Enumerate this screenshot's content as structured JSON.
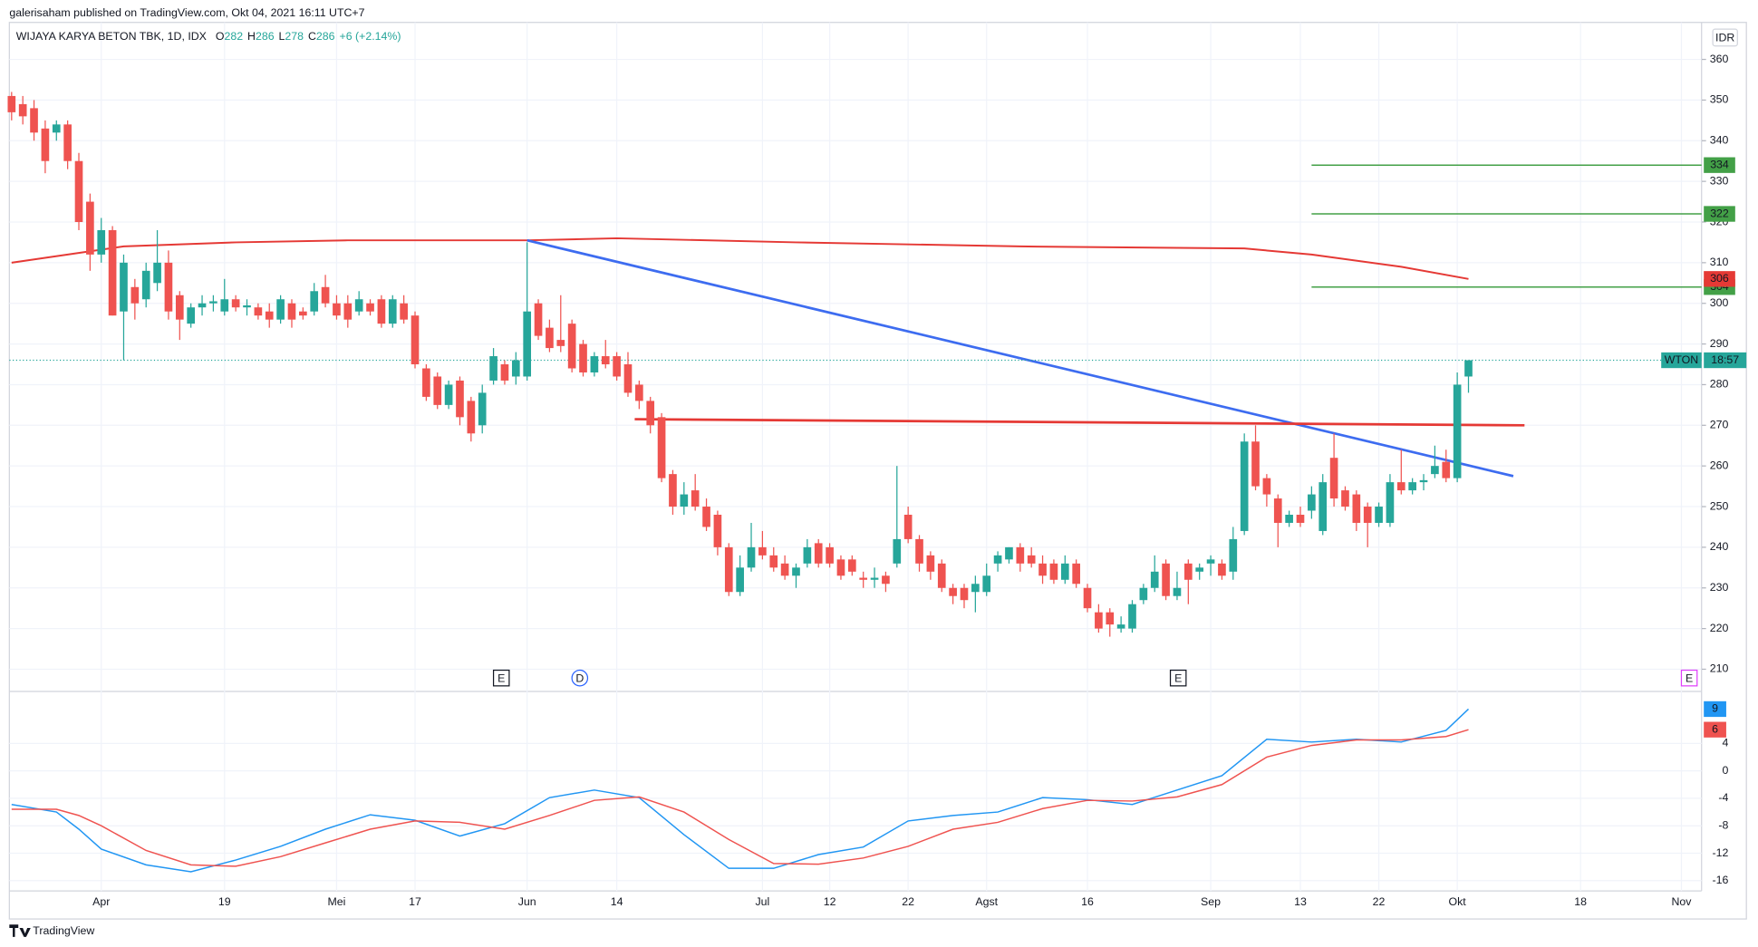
{
  "chart_data": {
    "type": "candlestick",
    "published": "galerisaham published on TradingView.com, Okt 04, 2021 16:11 UTC+7",
    "symbol_line": "WIJAYA KARYA BETON TBK, 1D, IDX",
    "legend": [
      {
        "label": "O",
        "value": 282
      },
      {
        "label": "H",
        "value": 286
      },
      {
        "label": "L",
        "value": 278
      },
      {
        "label": "C",
        "value": 286
      }
    ],
    "change": "+6 (+2.14%)",
    "currency": "IDR",
    "brand": "TradingView",
    "up_color": "#26a69a",
    "down_color": "#ef5350",
    "candles": [
      [
        351,
        352,
        345,
        347
      ],
      [
        349,
        351,
        344,
        346
      ],
      [
        348,
        350,
        340,
        342
      ],
      [
        343,
        345,
        332,
        335
      ],
      [
        342,
        345,
        340,
        344
      ],
      [
        344,
        345,
        333,
        335
      ],
      [
        335,
        337,
        318,
        320
      ],
      [
        325,
        327,
        308,
        312
      ],
      [
        312,
        321,
        310,
        318
      ],
      [
        318,
        319,
        297,
        297
      ],
      [
        298,
        312,
        286,
        310
      ],
      [
        304,
        306,
        296,
        300
      ],
      [
        301,
        310,
        299,
        308
      ],
      [
        305,
        318,
        303,
        310
      ],
      [
        310,
        313,
        296,
        298
      ],
      [
        302,
        303,
        291,
        296
      ],
      [
        295,
        300,
        294,
        299
      ],
      [
        299,
        302,
        297,
        300
      ],
      [
        300,
        302,
        298,
        300.5
      ],
      [
        298,
        306,
        297,
        301
      ],
      [
        301,
        302,
        298,
        299
      ],
      [
        299,
        301,
        297,
        299.5
      ],
      [
        299,
        300,
        296,
        297
      ],
      [
        298,
        300,
        294,
        296
      ],
      [
        296,
        302,
        295,
        301
      ],
      [
        300,
        301,
        294,
        296
      ],
      [
        298,
        299,
        296,
        297
      ],
      [
        298,
        305,
        297,
        303
      ],
      [
        304,
        307,
        299,
        300
      ],
      [
        300,
        302,
        296,
        297
      ],
      [
        300,
        302,
        294,
        296
      ],
      [
        298,
        303,
        297,
        301
      ],
      [
        300,
        301,
        297,
        298
      ],
      [
        301,
        302,
        294,
        295
      ],
      [
        295,
        302,
        294,
        301
      ],
      [
        300,
        302,
        295,
        296
      ],
      [
        297,
        298,
        284,
        285
      ],
      [
        284,
        285,
        276,
        277
      ],
      [
        282,
        283,
        274,
        275
      ],
      [
        275,
        281,
        274,
        280
      ],
      [
        281,
        282,
        270,
        272
      ],
      [
        276,
        277,
        266,
        268
      ],
      [
        270,
        280,
        268,
        278
      ],
      [
        281,
        289,
        280,
        287
      ],
      [
        285,
        286,
        280,
        281
      ],
      [
        282,
        288,
        280,
        286
      ],
      [
        282,
        315,
        281,
        298
      ],
      [
        300,
        301,
        291,
        292
      ],
      [
        294,
        296,
        288,
        289
      ],
      [
        291,
        302,
        288,
        289.5
      ],
      [
        295,
        296,
        283,
        284
      ],
      [
        290,
        291,
        282,
        283
      ],
      [
        283,
        288,
        282,
        287
      ],
      [
        287,
        291,
        284,
        285
      ],
      [
        287,
        288,
        281,
        282
      ],
      [
        285,
        288,
        277,
        278
      ],
      [
        280,
        281,
        274,
        276
      ],
      [
        276,
        277,
        268,
        270
      ],
      [
        272,
        273,
        256,
        257
      ],
      [
        258,
        259,
        248,
        250
      ],
      [
        250,
        256,
        248,
        253
      ],
      [
        254,
        258,
        249,
        250
      ],
      [
        250,
        252,
        244,
        245
      ],
      [
        248,
        249,
        238,
        240
      ],
      [
        240,
        241,
        228,
        229
      ],
      [
        229,
        238,
        228,
        235
      ],
      [
        235,
        246,
        234,
        240
      ],
      [
        240,
        244,
        237,
        238
      ],
      [
        238,
        240,
        234,
        235
      ],
      [
        236,
        238,
        232,
        233
      ],
      [
        233,
        236,
        230,
        235
      ],
      [
        236,
        242,
        235,
        240
      ],
      [
        241,
        242,
        235,
        236
      ],
      [
        240,
        241,
        235,
        236
      ],
      [
        237,
        238,
        232,
        233
      ],
      [
        237,
        238,
        233,
        234
      ],
      [
        232.5,
        234,
        230,
        232
      ],
      [
        232,
        235,
        230,
        232.5
      ],
      [
        233,
        234,
        229,
        231
      ],
      [
        236,
        260,
        235,
        242
      ],
      [
        248,
        250,
        241,
        242
      ],
      [
        242,
        243,
        234,
        236
      ],
      [
        238,
        239,
        232,
        234
      ],
      [
        236,
        237,
        229,
        230
      ],
      [
        230,
        231,
        226,
        228
      ],
      [
        230,
        231,
        225,
        227
      ],
      [
        229,
        233,
        224,
        231
      ],
      [
        229,
        236,
        228,
        233
      ],
      [
        236,
        239,
        234,
        238
      ],
      [
        237,
        240,
        236,
        240
      ],
      [
        240,
        241,
        234,
        236
      ],
      [
        238,
        240,
        235,
        236
      ],
      [
        236,
        238,
        231,
        233
      ],
      [
        236,
        237,
        231,
        232
      ],
      [
        232,
        238,
        231,
        236
      ],
      [
        236,
        237,
        230,
        231
      ],
      [
        230,
        231,
        224,
        225
      ],
      [
        224,
        226,
        219,
        220
      ],
      [
        224,
        225,
        218,
        221
      ],
      [
        220,
        223,
        219,
        221
      ],
      [
        220,
        227,
        219,
        226
      ],
      [
        227,
        231,
        226,
        230
      ],
      [
        230,
        238,
        229,
        234
      ],
      [
        236,
        237,
        227,
        228
      ],
      [
        228,
        234,
        227,
        230
      ],
      [
        236,
        237,
        226,
        232
      ],
      [
        234,
        236,
        232,
        235
      ],
      [
        236,
        238,
        233,
        237
      ],
      [
        236,
        237,
        232,
        233
      ],
      [
        234,
        245,
        232,
        242
      ],
      [
        244,
        268,
        243,
        266
      ],
      [
        266,
        270,
        254,
        255
      ],
      [
        257,
        258,
        250,
        253
      ],
      [
        252,
        253,
        240,
        246
      ],
      [
        246,
        249,
        245,
        248
      ],
      [
        248,
        250,
        245,
        246
      ],
      [
        249,
        255,
        247,
        253
      ],
      [
        244,
        258,
        243,
        256
      ],
      [
        262,
        268,
        250,
        252
      ],
      [
        254,
        255,
        249,
        250
      ],
      [
        253,
        254,
        244,
        246
      ],
      [
        250,
        251,
        240,
        246
      ],
      [
        246,
        251,
        245,
        250
      ],
      [
        246,
        258,
        245,
        256
      ],
      [
        256,
        264,
        253,
        254
      ],
      [
        254,
        257,
        253,
        256
      ],
      [
        256,
        258,
        254,
        256.5
      ],
      [
        258,
        265,
        257,
        260
      ],
      [
        261,
        264,
        256,
        257
      ],
      [
        257,
        283,
        256,
        280
      ],
      [
        282,
        286,
        278,
        286
      ]
    ],
    "xlim": [
      -0.2,
      150.8
    ],
    "xticks": [
      {
        "value": 8,
        "label": "Apr"
      },
      {
        "value": 19,
        "label": "19"
      },
      {
        "value": 29,
        "label": "Mei"
      },
      {
        "value": 36,
        "label": "17"
      },
      {
        "value": 46,
        "label": "Jun"
      },
      {
        "value": 54,
        "label": "14"
      },
      {
        "value": 67,
        "label": "Jul"
      },
      {
        "value": 73,
        "label": "12"
      },
      {
        "value": 80,
        "label": "22"
      },
      {
        "value": 87,
        "label": "Agst"
      },
      {
        "value": 96,
        "label": "16"
      },
      {
        "value": 107,
        "label": "Sep"
      },
      {
        "value": 115,
        "label": "13"
      },
      {
        "value": 122,
        "label": "22"
      },
      {
        "value": 129,
        "label": "Okt"
      },
      {
        "value": 140,
        "label": "18"
      },
      {
        "value": 149,
        "label": "Nov"
      }
    ],
    "ylim": [
      204.8,
      369.1
    ],
    "yticks": [
      210,
      220,
      230,
      240,
      250,
      260,
      270,
      280,
      290,
      300,
      310,
      320,
      330,
      340,
      350,
      360
    ],
    "grid": true,
    "ma": {
      "color": "#e53935",
      "x": [
        0,
        10,
        20,
        30,
        46,
        54,
        70,
        90,
        110,
        116,
        124,
        130
      ],
      "values": [
        310,
        314,
        315,
        315.5,
        315.5,
        316,
        315,
        314,
        313.5,
        312,
        309,
        306
      ]
    },
    "trendlines": [
      {
        "color": "#3d6cf0",
        "x": [
          46,
          134
        ],
        "y": [
          315.5,
          257.5
        ]
      },
      {
        "color": "#e53935",
        "x": [
          55.6,
          135
        ],
        "y": [
          271.5,
          270
        ]
      }
    ],
    "levels": [
      {
        "value": 334,
        "x_start": 116,
        "color": "#43a047"
      },
      {
        "value": 322,
        "x_start": 116,
        "color": "#43a047"
      },
      {
        "value": 304,
        "x_start": 116,
        "color": "#43a047"
      }
    ],
    "price_badge": {
      "symbol": "WTON",
      "countdown": "18:57",
      "value": 286,
      "color": "#26a69a"
    },
    "events": [
      {
        "label": "E",
        "x": 43.7,
        "color": "#131722"
      },
      {
        "label": "D",
        "x": 50.7,
        "color": "#2962ff"
      },
      {
        "label": "E",
        "x": 104.1,
        "color": "#131722"
      },
      {
        "label": "E",
        "x": 149.7,
        "color": "#e040fb"
      }
    ],
    "indicator": {
      "ylim": [
        -17.5,
        11.4
      ],
      "yticks": [
        -16,
        -12,
        -8,
        -4,
        0,
        4
      ],
      "x": [
        0,
        4,
        6,
        8,
        12,
        16,
        20,
        24,
        28,
        32,
        36,
        40,
        44,
        48,
        52,
        56,
        60,
        64,
        68,
        72,
        76,
        80,
        84,
        88,
        92,
        96,
        100,
        104,
        108,
        112,
        116,
        120,
        124,
        128,
        130
      ],
      "series": [
        {
          "color": "#2196f3",
          "values": [
            -4.9,
            -6,
            -8.5,
            -11.4,
            -13.7,
            -14.7,
            -13,
            -11,
            -8.5,
            -6.4,
            -7.2,
            -9.5,
            -7.7,
            -3.9,
            -2.8,
            -3.9,
            -9.3,
            -14.2,
            -14.2,
            -12.2,
            -11.1,
            -7.3,
            -6.5,
            -6,
            -3.9,
            -4.2,
            -4.9,
            -2.8,
            -0.7,
            4.6,
            4.2,
            4.6,
            4.2,
            5.9,
            9
          ]
        },
        {
          "color": "#ef5350",
          "values": [
            -5.6,
            -5.6,
            -6.5,
            -8,
            -11.6,
            -13.7,
            -13.9,
            -12.5,
            -10.5,
            -8.5,
            -7.3,
            -7.5,
            -8.5,
            -6.5,
            -4.3,
            -3.8,
            -6,
            -10,
            -13.5,
            -13.6,
            -12.7,
            -11,
            -8.5,
            -7.5,
            -5.5,
            -4.3,
            -4.4,
            -3.8,
            -2,
            2,
            3.7,
            4.5,
            4.5,
            5,
            6
          ]
        }
      ]
    }
  }
}
